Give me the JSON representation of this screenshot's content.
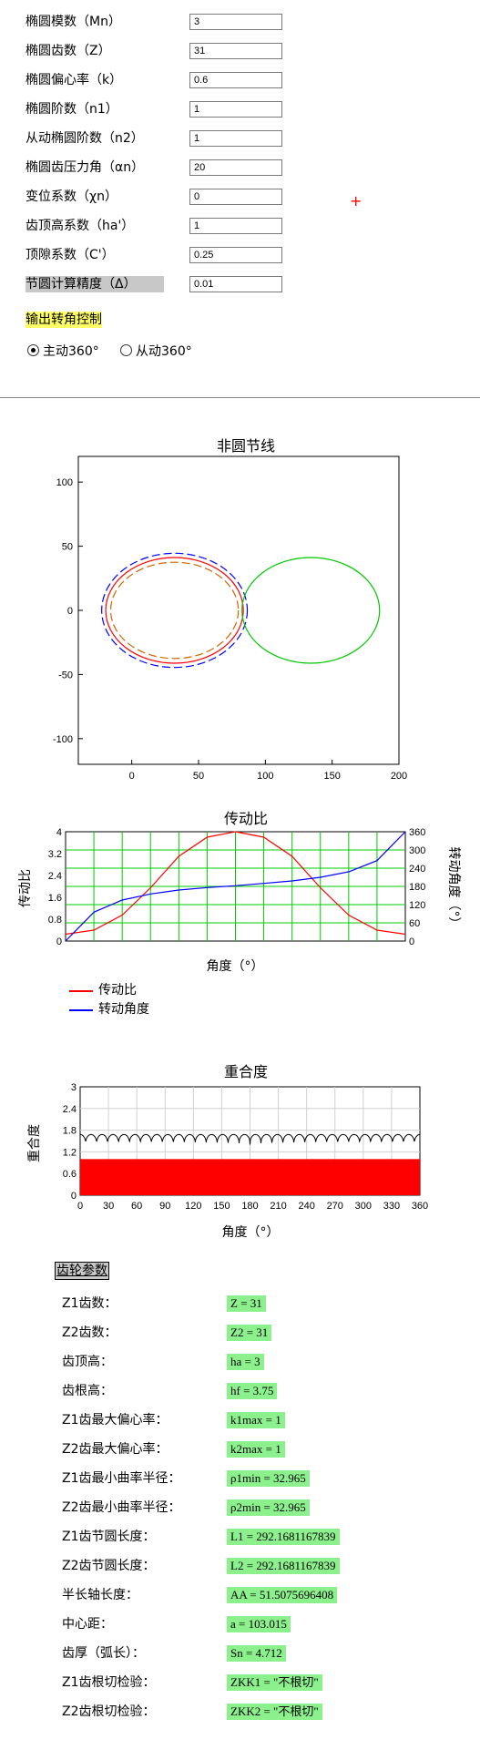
{
  "params": [
    {
      "label": "椭圆模数（Mn）",
      "value": "3"
    },
    {
      "label": "椭圆齿数（Z）",
      "value": "31"
    },
    {
      "label": "椭圆偏心率（k）",
      "value": "0.6"
    },
    {
      "label": "椭圆阶数（n1）",
      "value": "1"
    },
    {
      "label": "从动椭圆阶数（n2）",
      "value": "1"
    },
    {
      "label": "椭圆齿压力角（αn）",
      "value": "20"
    },
    {
      "label": "变位系数（χn）",
      "value": "0"
    },
    {
      "label": "齿顶高系数（ha'）",
      "value": "1"
    },
    {
      "label": "顶隙系数（C'）",
      "value": "0.25"
    },
    {
      "label": "节圆计算精度（Δ）",
      "value": "0.01"
    }
  ],
  "output_control": {
    "title": "输出转角控制",
    "option1": "主动360°",
    "option2": "从动360°",
    "selected": "option1"
  },
  "marker_symbol": "+",
  "charts": {
    "pitch": {
      "title": "非圆节线",
      "x_ticks": [
        "0",
        "50",
        "100",
        "150",
        "200"
      ],
      "y_ticks": [
        "100",
        "50",
        "0",
        "-50",
        "-100"
      ]
    },
    "ratio": {
      "title": "传动比",
      "xlabel": "角度（°）",
      "ylabel_left": "传动比",
      "ylabel_right": "转动角度（°）",
      "y_left_ticks": [
        "4",
        "3.2",
        "2.4",
        "1.6",
        "0.8",
        "0"
      ],
      "y_right_ticks": [
        "360",
        "300",
        "240",
        "180",
        "120",
        "60",
        "0"
      ],
      "legend": [
        "传动比",
        "转动角度"
      ]
    },
    "overlap": {
      "title": "重合度",
      "xlabel": "角度（°）",
      "ylabel": "重合度",
      "y_ticks": [
        "3",
        "2.4",
        "1.8",
        "1.2",
        "0.6",
        "0"
      ],
      "x_ticks": [
        "0",
        "30",
        "60",
        "90",
        "120",
        "150",
        "180",
        "210",
        "240",
        "270",
        "300",
        "330",
        "360"
      ]
    }
  },
  "chart_data": [
    {
      "type": "line",
      "title": "非圆节线",
      "xlim": [
        -40,
        200
      ],
      "ylim": [
        -120,
        120
      ],
      "series": [
        {
          "color": "#ff0000",
          "style": "solid",
          "center": [
            32,
            0
          ],
          "a": 51.5,
          "b": 41.2,
          "note_values": "ellipse"
        },
        {
          "color": "#cc6600",
          "style": "dashed",
          "center": [
            32,
            0
          ],
          "a": 47.8,
          "b": 37.5
        },
        {
          "color": "#0000ff",
          "style": "dashed",
          "center": [
            32,
            0
          ],
          "a": 54.5,
          "b": 44.5
        },
        {
          "color": "#00c800",
          "style": "solid",
          "center": [
            134,
            0
          ],
          "a": 51.5,
          "b": 41.2
        }
      ]
    },
    {
      "type": "line",
      "title": "传动比",
      "xlabel": "角度（°）",
      "ylabel": "传动比",
      "xlim": [
        0,
        360
      ],
      "ylim": [
        0,
        4
      ],
      "y2lim": [
        0,
        360
      ],
      "grid": true,
      "series": [
        {
          "name": "传动比",
          "color": "#ff0000",
          "x": [
            0,
            30,
            60,
            90,
            120,
            150,
            180,
            210,
            240,
            270,
            300,
            330,
            360
          ],
          "values": [
            0.25,
            0.4,
            0.95,
            1.95,
            3.1,
            3.8,
            4.0,
            3.8,
            3.1,
            1.95,
            0.95,
            0.4,
            0.25
          ]
        },
        {
          "name": "转动角度",
          "color": "#0000ff",
          "axis": "right",
          "x": [
            0,
            30,
            60,
            90,
            120,
            150,
            180,
            210,
            240,
            270,
            300,
            330,
            360
          ],
          "values": [
            0,
            95,
            135,
            155,
            168,
            176,
            182,
            190,
            198,
            210,
            228,
            265,
            360
          ]
        }
      ]
    },
    {
      "type": "area",
      "title": "重合度",
      "xlabel": "角度（°）",
      "ylabel": "重合度",
      "xlim": [
        0,
        360
      ],
      "ylim": [
        0,
        3
      ],
      "grid": true,
      "series": [
        {
          "color": "#ff0000",
          "x": [
            0,
            360
          ],
          "values": [
            1,
            1
          ]
        },
        {
          "color": "#000000",
          "wave_min": 1.4,
          "wave_max": 1.68,
          "periods": 31
        }
      ]
    }
  ],
  "results": {
    "title": "齿轮参数",
    "rows": [
      {
        "label": "Z1齿数：",
        "value": "Z = 31"
      },
      {
        "label": "Z2齿数：",
        "value": "Z2 = 31"
      },
      {
        "label": "齿顶高：",
        "value": "ha = 3"
      },
      {
        "label": "齿根高：",
        "value": "hf = 3.75"
      },
      {
        "label": "Z1齿最大偏心率：",
        "value": "k1max = 1"
      },
      {
        "label": "Z2齿最大偏心率：",
        "value": "k2max = 1"
      },
      {
        "label": "Z1齿最小曲率半径：",
        "value": "ρ1min = 32.965"
      },
      {
        "label": "Z2齿最小曲率半径：",
        "value": "ρ2min = 32.965"
      },
      {
        "label": "Z1齿节圆长度：",
        "value": "L1 = 292.1681167839"
      },
      {
        "label": "Z2齿节圆长度：",
        "value": "L2 = 292.1681167839"
      },
      {
        "label": "半长轴长度：",
        "value": "AA = 51.5075696408"
      },
      {
        "label": "中心距：",
        "value": "a = 103.015"
      },
      {
        "label": "齿厚（弧长）：",
        "value": "Sn = 4.712"
      },
      {
        "label": "Z1齿根切检验：",
        "value": "ZKK1 = \"不根切\""
      },
      {
        "label": "Z2齿根切检验：",
        "value": "ZKK2 = \"不根切\""
      }
    ]
  }
}
